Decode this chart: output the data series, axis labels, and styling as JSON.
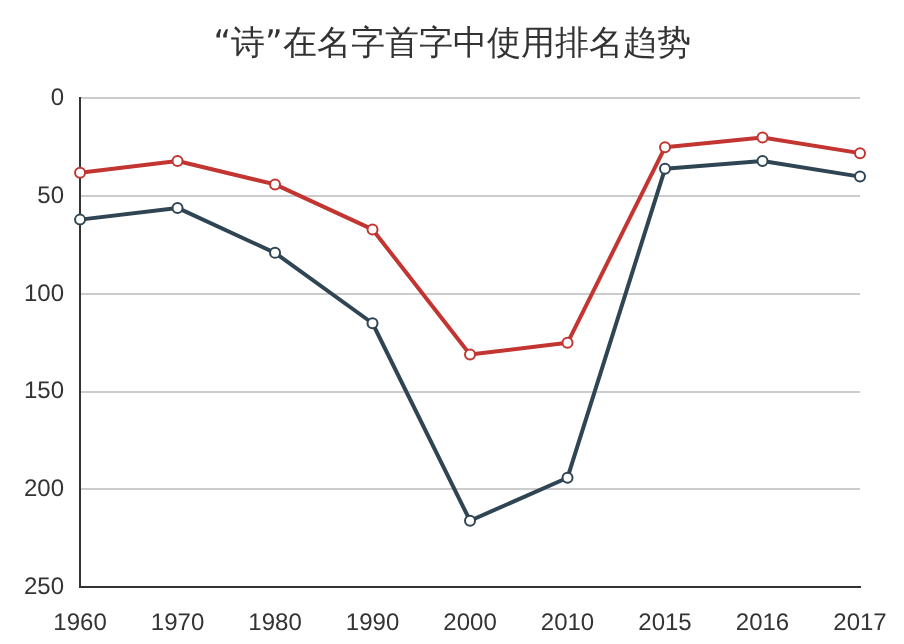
{
  "chart_data": {
    "type": "line",
    "title": "“诗”在名字首字中使用排名趋势",
    "categories": [
      "1960",
      "1970",
      "1980",
      "1990",
      "2000",
      "2010",
      "2015",
      "2016",
      "2017"
    ],
    "series": [
      {
        "color": "#c23531",
        "values": [
          38,
          32,
          44,
          67,
          131,
          125,
          25,
          20,
          28
        ]
      },
      {
        "color": "#2f4554",
        "values": [
          62,
          56,
          79,
          115,
          216,
          194,
          36,
          32,
          40
        ]
      }
    ],
    "ylim": [
      250,
      0
    ],
    "yticks": [
      0,
      50,
      100,
      150,
      200,
      250
    ],
    "grid": "y",
    "legend": false,
    "marker": "circle",
    "line_style": "solid"
  }
}
